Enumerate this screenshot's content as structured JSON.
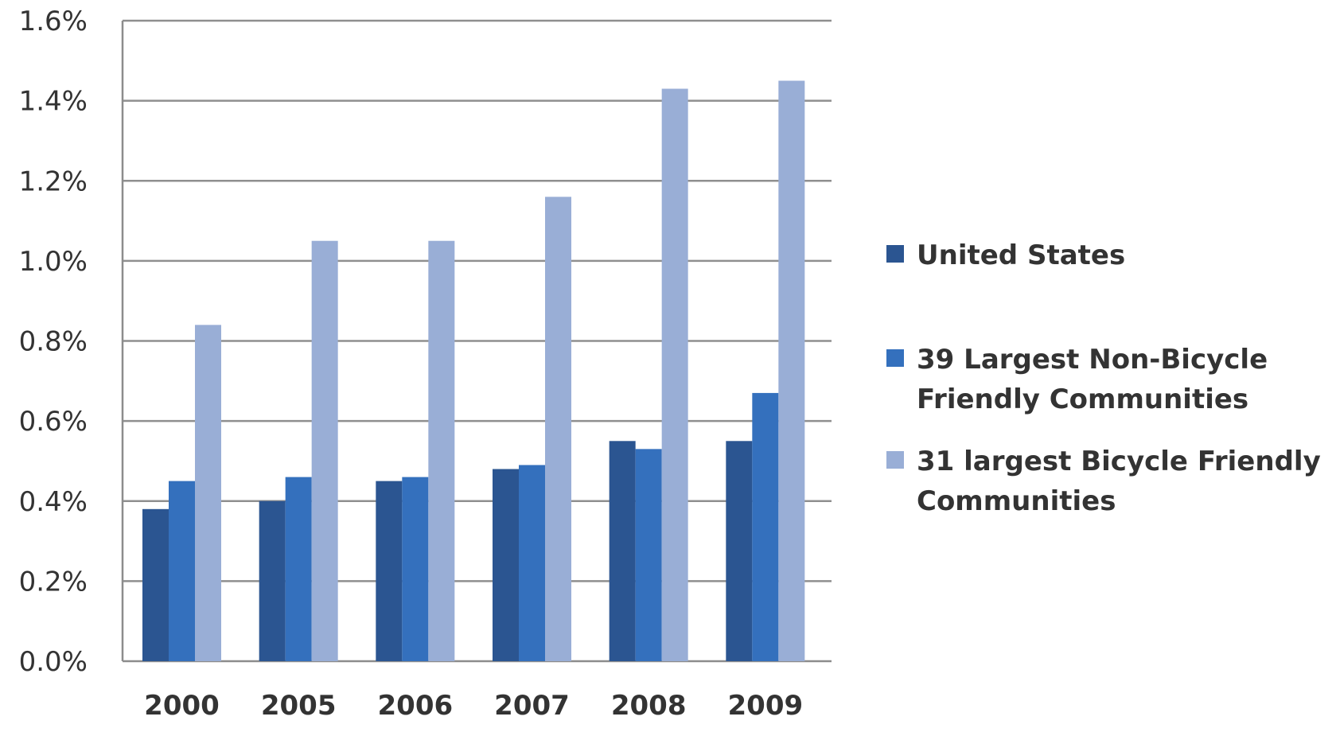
{
  "chart_data": {
    "type": "bar",
    "categories": [
      "2000",
      "2005",
      "2006",
      "2007",
      "2008",
      "2009"
    ],
    "series": [
      {
        "name": "United States",
        "color": "#2b5591",
        "values": [
          0.38,
          0.4,
          0.45,
          0.48,
          0.55,
          0.55
        ]
      },
      {
        "name": "39 Largest Non-Bicycle Friendly Communities",
        "color": "#3470bd",
        "values": [
          0.45,
          0.46,
          0.46,
          0.49,
          0.53,
          0.67
        ]
      },
      {
        "name": "31 largest Bicycle Friendly Communities",
        "color": "#99aed6",
        "values": [
          0.84,
          1.05,
          1.05,
          1.16,
          1.43,
          1.45
        ]
      }
    ],
    "title": "",
    "xlabel": "",
    "ylabel": "",
    "ylim": [
      0,
      1.6
    ],
    "ytick_labels": [
      "0.0%",
      "0.2%",
      "0.4%",
      "0.6%",
      "0.8%",
      "1.0%",
      "1.2%",
      "1.4%",
      "1.6%"
    ],
    "grid": true,
    "legend_position": "right",
    "legend_lines": [
      [
        "United States"
      ],
      [
        "39 Largest Non-Bicycle",
        "Friendly Communities"
      ],
      [
        "31 largest Bicycle Friendly",
        "Communities"
      ]
    ]
  }
}
